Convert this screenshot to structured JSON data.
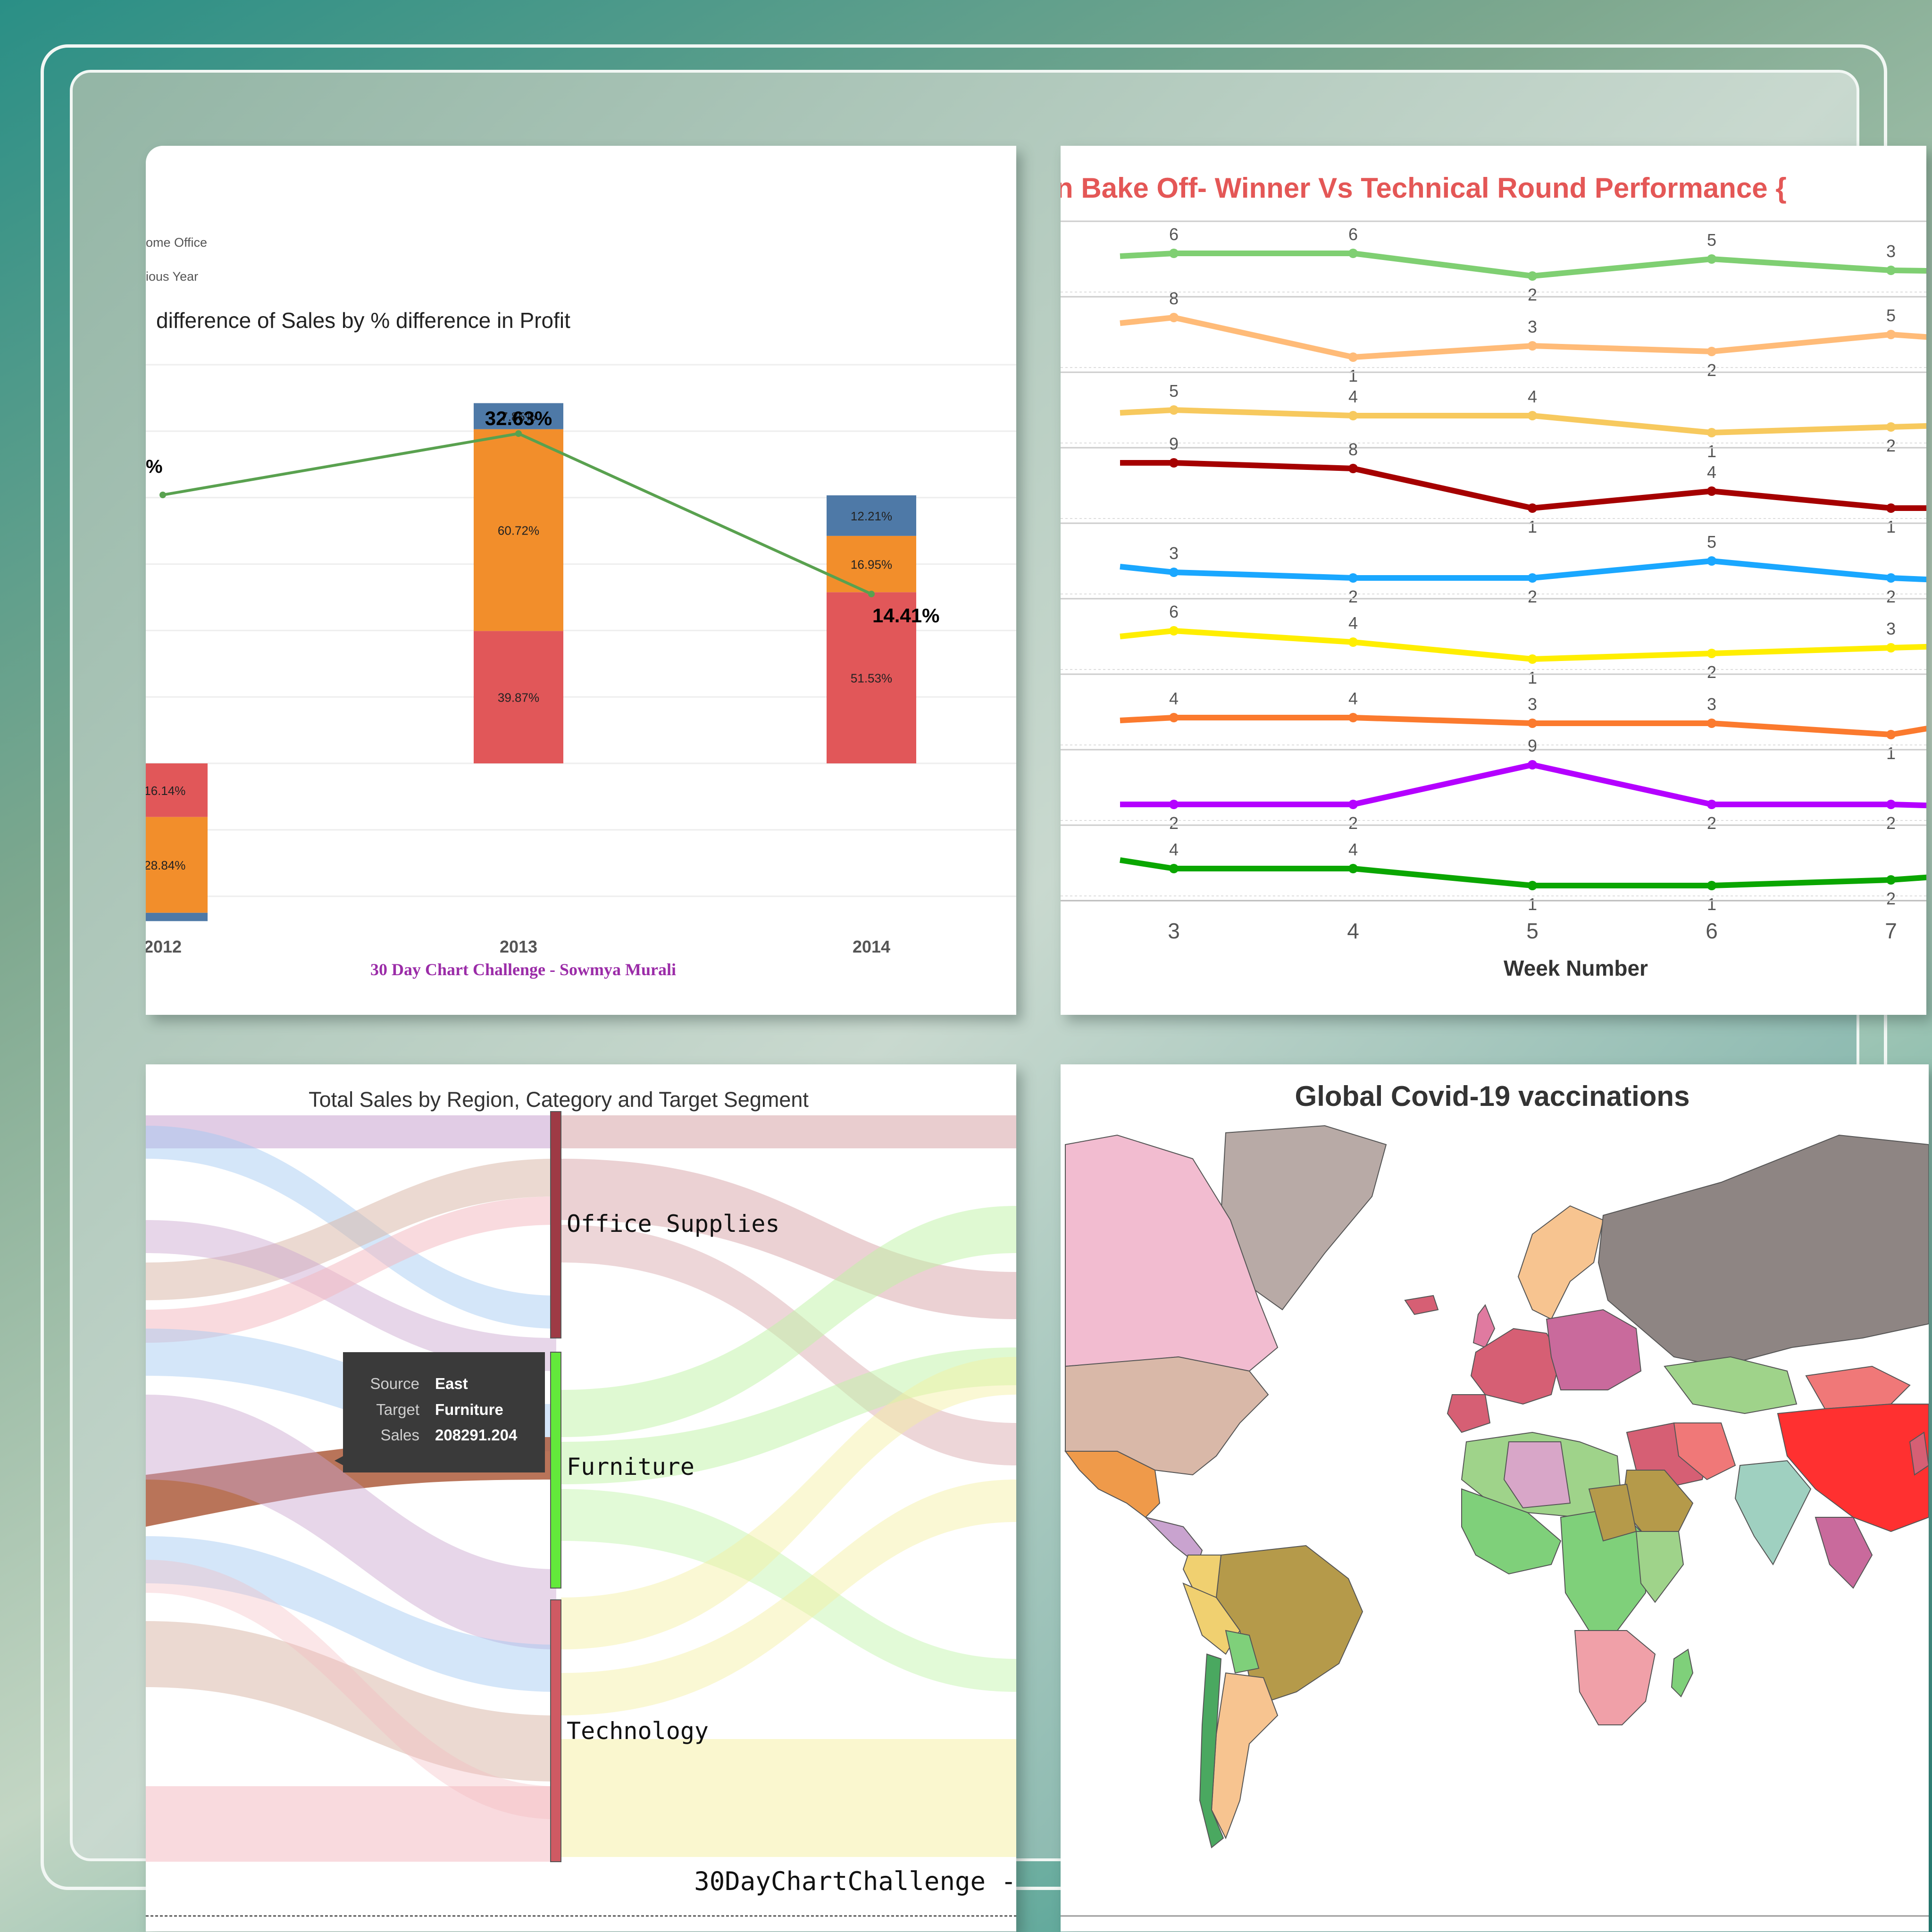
{
  "panel1": {
    "legend": [
      "ome Office",
      "ious Year"
    ],
    "title": "difference of Sales by % difference in Profit",
    "footer": "30 Day Chart Challenge - Sowmya Murali",
    "line_end_label_left": "%",
    "colors": {
      "blue": "#4e79a7",
      "orange": "#f28e2b",
      "red": "#e15759",
      "line": "#59a14f",
      "footer": "#9b2ca8"
    }
  },
  "panel2": {
    "title": "n Bake Off- Winner Vs Technical Round Performance {",
    "xlabel": "Week Number"
  },
  "panel3": {
    "title": "Total Sales by Region, Category and Target Segment",
    "nodes": [
      "Office Supplies",
      "Furniture",
      "Technology"
    ],
    "tooltip": {
      "source_label": "Source",
      "source_value": "East",
      "target_label": "Target",
      "target_value": "Furniture",
      "sales_label": "Sales",
      "sales_value": "208291.204"
    },
    "footer": "30DayChartChallenge -"
  },
  "panel4": {
    "title": "Global Covid-19  vaccinations"
  },
  "chart_data": [
    {
      "type": "bar",
      "subtype": "stacked-bar-with-line",
      "title": "difference of Sales by % difference in Profit",
      "categories": [
        "2012",
        "2013",
        "2014"
      ],
      "series": [
        {
          "name": "",
          "color": "#e15759",
          "values": [
            -16.14,
            39.87,
            51.53
          ],
          "labels": [
            "-16.14%",
            "39.87%",
            "51.53%"
          ]
        },
        {
          "name": "",
          "color": "#f28e2b",
          "values": [
            -28.84,
            60.72,
            16.95
          ],
          "labels": [
            "-28.84%",
            "60.72%",
            "16.95%"
          ]
        },
        {
          "name": "",
          "color": "#4e79a7",
          "values": [
            -2.5,
            7.85,
            12.21
          ],
          "labels": [
            "",
            "7.85%",
            "12.21%"
          ]
        }
      ],
      "line": {
        "values": [
          20,
          32.63,
          14.41
        ],
        "labels": [
          "",
          "32.63%",
          "14.41%"
        ]
      },
      "ylim": [
        -47,
        122
      ]
    },
    {
      "type": "line",
      "subtype": "small-multiples",
      "title": "n Bake Off- Winner Vs Technical Round Performance {",
      "xlabel": "Week Number",
      "x": [
        2.7,
        3,
        4,
        5,
        6,
        7,
        7.45
      ],
      "xticks": [
        3,
        4,
        5,
        6,
        7
      ],
      "series": [
        {
          "name": "",
          "color": "#7fcf72",
          "values": [
            5.5,
            6,
            6,
            2,
            5,
            3,
            2.8
          ],
          "labels": [
            "",
            "6",
            "6",
            "2",
            "5",
            "3",
            ""
          ]
        },
        {
          "name": "",
          "color": "#ffbb78",
          "values": [
            7,
            8,
            1,
            3,
            2,
            5,
            4
          ],
          "labels": [
            "",
            "8",
            "1",
            "3",
            "2",
            "5",
            ""
          ]
        },
        {
          "name": "",
          "color": "#f7c95e",
          "values": [
            4.5,
            5,
            4,
            4,
            1,
            2,
            2.4
          ],
          "labels": [
            "",
            "5",
            "4",
            "4",
            "1",
            "2",
            ""
          ]
        },
        {
          "name": "",
          "color": "#a50000",
          "values": [
            9,
            9,
            8,
            1,
            4,
            1,
            1
          ],
          "labels": [
            "",
            "9",
            "8",
            "1",
            "4",
            "1",
            ""
          ]
        },
        {
          "name": "",
          "color": "#1aa7ff",
          "values": [
            4,
            3,
            2,
            2,
            5,
            2,
            1.4
          ],
          "labels": [
            "",
            "3",
            "2",
            "2",
            "5",
            "2",
            ""
          ]
        },
        {
          "name": "",
          "color": "#ffee00",
          "values": [
            5,
            6,
            4,
            1,
            2,
            3,
            3.4
          ],
          "labels": [
            "",
            "6",
            "4",
            "1",
            "2",
            "3",
            ""
          ]
        },
        {
          "name": "",
          "color": "#fb7a2e",
          "values": [
            3.5,
            4,
            4,
            3,
            3,
            1,
            3.4
          ],
          "labels": [
            "",
            "4",
            "4",
            "3",
            "3",
            "1",
            ""
          ]
        },
        {
          "name": "",
          "color": "#b400ff",
          "values": [
            2,
            2,
            2,
            9,
            2,
            2,
            1.6
          ],
          "labels": [
            "",
            "2",
            "2",
            "9",
            "2",
            "2",
            ""
          ]
        },
        {
          "name": "",
          "color": "#0aa600",
          "values": [
            5.5,
            4,
            4,
            1,
            1,
            2,
            3
          ],
          "labels": [
            "",
            "4",
            "4",
            "1",
            "1",
            "2",
            ""
          ]
        }
      ]
    },
    {
      "type": "sankey",
      "title": "Total Sales by Region, Category and Target Segment",
      "nodes": [
        "Office Supplies",
        "Furniture",
        "Technology"
      ],
      "node_colors": [
        "#9e3a45",
        "#63e93b",
        "#cf5a63"
      ],
      "highlighted_link": {
        "source": "East",
        "target": "Furniture",
        "value": 208291.204
      }
    },
    {
      "type": "map",
      "title": "Global Covid-19  vaccinations"
    }
  ]
}
